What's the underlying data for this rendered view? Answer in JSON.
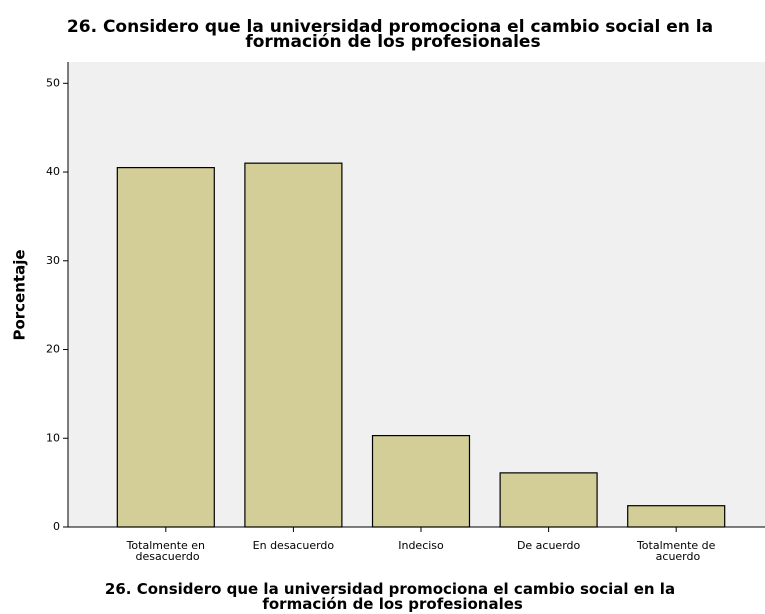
{
  "chart_data": {
    "type": "bar",
    "title": "26. Considero que la universidad promociona el cambio social en la\nformación de los profesionales",
    "x_label": "26. Considero que la universidad promociona el cambio social en la\nformación de los profesionales",
    "y_label": "Porcentaje",
    "categories": [
      "Totalmente en\ndesacuerdo",
      "En desacuerdo",
      "Indeciso",
      "De acuerdo",
      "Totalmente de\nacuerdo"
    ],
    "values": [
      40.5,
      41.0,
      10.3,
      6.1,
      2.4
    ],
    "color": "#d3ce97",
    "ylim": [
      0,
      52.4
    ],
    "yticks": [
      0,
      10,
      20,
      30,
      40,
      50
    ],
    "grid": false
  }
}
